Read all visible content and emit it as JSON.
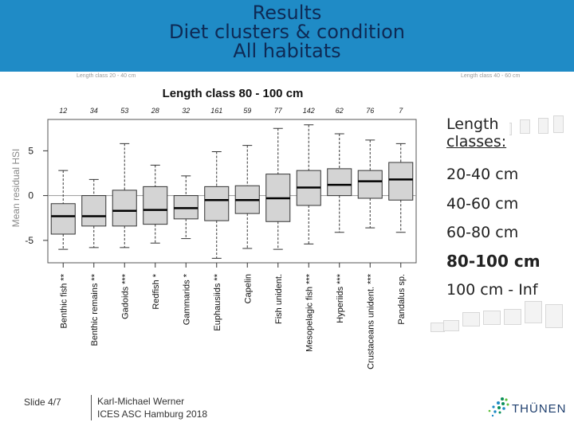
{
  "slide": {
    "title_lines": [
      "Results",
      "Diet clusters & condition",
      "All habitats"
    ],
    "footer_slide": "Slide 4/7",
    "footer_author": "Karl-Michael Werner",
    "footer_event": "ICES ASC Hamburg 2018",
    "logo_text": "THÜNEN",
    "logo_icon": "thuenen-logo-dots",
    "ghost_label_left": "Length class 20 - 40 cm",
    "ghost_label_right": "Length class 40 - 60 cm"
  },
  "legend": {
    "heading": [
      "Length",
      "classes:"
    ],
    "items": [
      "20-40 cm",
      "40-60 cm",
      "60-80 cm",
      "80-100 cm",
      "100 cm - Inf"
    ],
    "active_index": 3
  },
  "chart_data": {
    "type": "box",
    "title": "Length class 80 - 100 cm",
    "ylabel": "Mean residual HSI",
    "ylim": [
      -7.5,
      8.5
    ],
    "yticks": [
      -5,
      0,
      5
    ],
    "reference_line": 0,
    "categories": [
      "Benthic fish **",
      "Benthic remains **",
      "Gadoids ***",
      "Redfish *",
      "Gammarids *",
      "Euphausiids **",
      "Capelin",
      "Fish unident.",
      "Mesopelagic fish ***",
      "Hyperiids ***",
      "Crustaceans unident. ***",
      "Pandalus sp."
    ],
    "counts": [
      "12",
      "34",
      "53",
      "28",
      "32",
      "161",
      "59",
      "77",
      "142",
      "62",
      "76",
      "7"
    ],
    "boxes": [
      {
        "whisker_low": -6.0,
        "q1": -4.3,
        "median": -2.3,
        "q3": -0.9,
        "whisker_high": 2.8
      },
      {
        "whisker_low": -5.8,
        "q1": -3.4,
        "median": -2.3,
        "q3": 0.0,
        "whisker_high": 1.8
      },
      {
        "whisker_low": -5.8,
        "q1": -3.4,
        "median": -1.7,
        "q3": 0.6,
        "whisker_high": 5.8
      },
      {
        "whisker_low": -5.3,
        "q1": -3.2,
        "median": -1.6,
        "q3": 1.0,
        "whisker_high": 3.4
      },
      {
        "whisker_low": -4.8,
        "q1": -2.6,
        "median": -1.4,
        "q3": 0.0,
        "whisker_high": 2.2
      },
      {
        "whisker_low": -7.0,
        "q1": -2.8,
        "median": -0.5,
        "q3": 1.0,
        "whisker_high": 4.9
      },
      {
        "whisker_low": -5.9,
        "q1": -2.0,
        "median": -0.5,
        "q3": 1.1,
        "whisker_high": 5.6
      },
      {
        "whisker_low": -6.0,
        "q1": -2.9,
        "median": -0.3,
        "q3": 2.4,
        "whisker_high": 7.5
      },
      {
        "whisker_low": -5.4,
        "q1": -1.1,
        "median": 0.9,
        "q3": 2.8,
        "whisker_high": 7.9
      },
      {
        "whisker_low": -4.1,
        "q1": 0.0,
        "median": 1.2,
        "q3": 3.0,
        "whisker_high": 6.9
      },
      {
        "whisker_low": -3.6,
        "q1": -0.3,
        "median": 1.6,
        "q3": 2.8,
        "whisker_high": 6.2
      },
      {
        "whisker_low": -4.1,
        "q1": -0.5,
        "median": 1.8,
        "q3": 3.7,
        "whisker_high": 5.8
      }
    ]
  },
  "colors": {
    "header_bg": "#1f8bc6",
    "title_text": "#0e2a55",
    "box_fill": "#d4d4d4",
    "plot_border": "#555555"
  }
}
